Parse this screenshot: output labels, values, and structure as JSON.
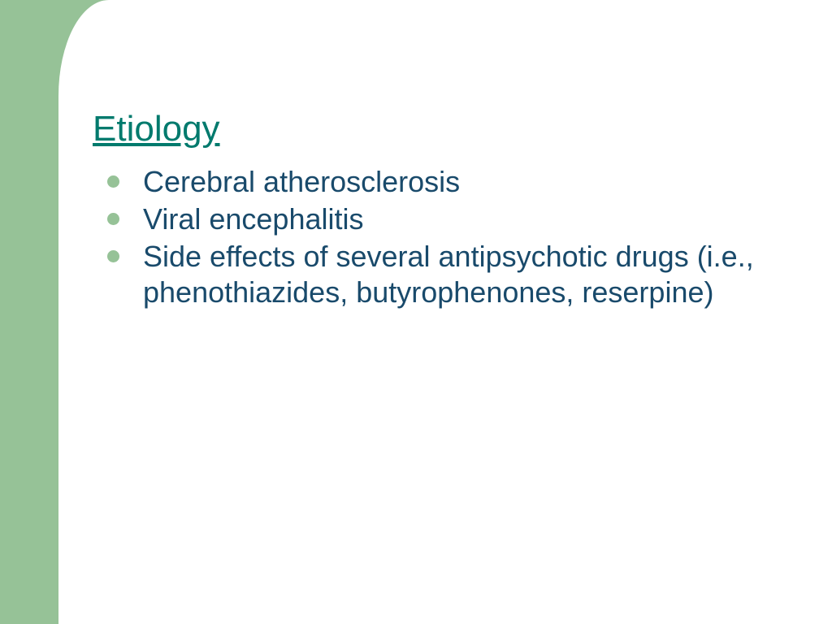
{
  "colors": {
    "sidebar": "#96c297",
    "title": "#007a6d",
    "text": "#194a6b",
    "bullet": "#96c297",
    "background": "#ffffff"
  },
  "slide": {
    "title": "Etiology",
    "bullets": [
      "Cerebral atherosclerosis",
      "Viral encephalitis",
      "Side effects of several antipsychotic drugs (i.e., phenothiazides, butyrophenones, reserpine)"
    ]
  },
  "typography": {
    "title_fontsize": 44,
    "body_fontsize": 36
  }
}
